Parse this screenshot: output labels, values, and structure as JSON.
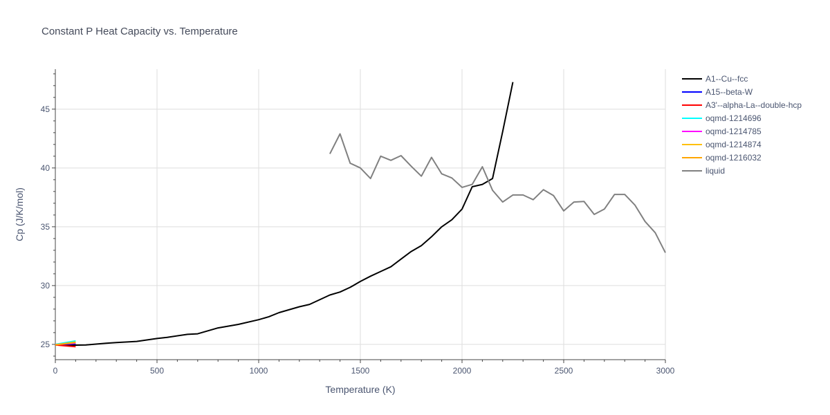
{
  "chart_data": {
    "type": "line",
    "title": "Constant P Heat Capacity vs. Temperature",
    "xlabel": "Temperature (K)",
    "ylabel": "Cp (J/K/mol)",
    "xlim": [
      0,
      3000
    ],
    "ylim": [
      23.7,
      48.4
    ],
    "xticks": [
      0,
      500,
      1000,
      1500,
      2000,
      2500,
      3000
    ],
    "xtick_labels": [
      "0",
      "500",
      "1000",
      "1500",
      "2000",
      "2500",
      "3000"
    ],
    "yticks": [
      25,
      30,
      35,
      40,
      45
    ],
    "ytick_labels": [
      "25",
      "30",
      "35",
      "40",
      "45"
    ],
    "grid": true,
    "legend_position": "right",
    "series": [
      {
        "name": "A1--Cu--fcc",
        "color": "#000000",
        "x": [
          0,
          50,
          150,
          250,
          300,
          400,
          500,
          550,
          650,
          700,
          800,
          900,
          1000,
          1050,
          1100,
          1200,
          1250,
          1350,
          1400,
          1450,
          1500,
          1550,
          1600,
          1650,
          1700,
          1750,
          1800,
          1850,
          1900,
          1950,
          2000,
          2050,
          2100,
          2150,
          2200,
          2250
        ],
        "y": [
          24.95,
          24.92,
          24.95,
          25.1,
          25.15,
          25.25,
          25.5,
          25.6,
          25.85,
          25.9,
          26.4,
          26.7,
          27.1,
          27.35,
          27.7,
          28.2,
          28.4,
          29.2,
          29.45,
          29.85,
          30.35,
          30.8,
          31.2,
          31.6,
          32.25,
          32.9,
          33.4,
          34.15,
          35.0,
          35.6,
          36.5,
          38.4,
          38.6,
          39.1,
          43.1,
          47.3
        ]
      },
      {
        "name": "A15--beta-W",
        "color": "#0000ff",
        "x": [
          0,
          100
        ],
        "y": [
          24.98,
          25.05
        ]
      },
      {
        "name": "A3'--alpha-La--double-hcp",
        "color": "#ff0000",
        "x": [
          0,
          100
        ],
        "y": [
          24.95,
          24.8
        ]
      },
      {
        "name": "oqmd-1214696",
        "color": "#00ffff",
        "x": [
          0,
          100
        ],
        "y": [
          25.0,
          25.3
        ]
      },
      {
        "name": "oqmd-1214785",
        "color": "#ff00ff",
        "x": [
          0,
          100
        ],
        "y": [
          24.98,
          25.1
        ]
      },
      {
        "name": "oqmd-1214874",
        "color": "#ffc000",
        "x": [
          0,
          100
        ],
        "y": [
          24.95,
          25.2
        ]
      },
      {
        "name": "oqmd-1216032",
        "color": "#ffa500",
        "x": [
          0,
          100
        ],
        "y": [
          24.97,
          25.15
        ]
      },
      {
        "name": "liquid",
        "color": "#808080",
        "x": [
          1350,
          1400,
          1450,
          1500,
          1550,
          1600,
          1650,
          1700,
          1750,
          1800,
          1850,
          1900,
          1950,
          2000,
          2050,
          2100,
          2150,
          2200,
          2250,
          2300,
          2350,
          2400,
          2450,
          2500,
          2550,
          2600,
          2650,
          2700,
          2750,
          2800,
          2850,
          2900,
          2950,
          3000
        ],
        "y": [
          41.2,
          42.9,
          40.4,
          40.0,
          39.1,
          41.0,
          40.65,
          41.05,
          40.15,
          39.3,
          40.9,
          39.5,
          39.15,
          38.35,
          38.6,
          40.1,
          38.1,
          37.1,
          37.7,
          37.7,
          37.3,
          38.15,
          37.65,
          36.35,
          37.1,
          37.15,
          36.05,
          36.5,
          37.75,
          37.75,
          36.85,
          35.45,
          34.5,
          32.8
        ]
      }
    ]
  }
}
